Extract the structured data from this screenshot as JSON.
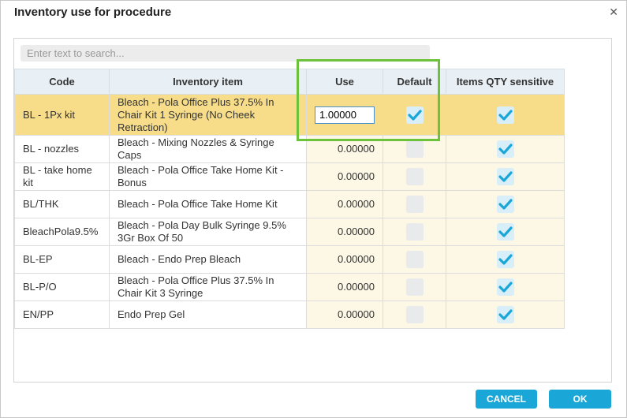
{
  "dialog": {
    "title": "Inventory use for procedure",
    "close_glyph": "✕"
  },
  "search": {
    "placeholder": "Enter text to search...",
    "value": ""
  },
  "columns": [
    "Code",
    "Inventory item",
    "Use",
    "Default",
    "Items QTY sensitive"
  ],
  "rows": [
    {
      "code": "BL - 1Px kit",
      "item": "Bleach - Pola Office Plus 37.5% In Chair Kit 1 Syringe (No Cheek Retraction)",
      "use": "1.00000",
      "default": true,
      "qty_sensitive": true,
      "selected": true
    },
    {
      "code": "BL - nozzles",
      "item": "Bleach - Mixing Nozzles & Syringe Caps",
      "use": "0.00000",
      "default": false,
      "qty_sensitive": true,
      "selected": false
    },
    {
      "code": "BL - take home kit",
      "item": "Bleach - Pola Office Take Home Kit - Bonus",
      "use": "0.00000",
      "default": false,
      "qty_sensitive": true,
      "selected": false
    },
    {
      "code": "BL/THK",
      "item": "Bleach - Pola Office Take Home Kit",
      "use": "0.00000",
      "default": false,
      "qty_sensitive": true,
      "selected": false
    },
    {
      "code": "BleachPola9.5%",
      "item": "Bleach - Pola Day Bulk Syringe 9.5% 3Gr Box Of 50",
      "use": "0.00000",
      "default": false,
      "qty_sensitive": true,
      "selected": false
    },
    {
      "code": "BL-EP",
      "item": "Bleach - Endo Prep Bleach",
      "use": "0.00000",
      "default": false,
      "qty_sensitive": true,
      "selected": false
    },
    {
      "code": "BL-P/O",
      "item": "Bleach - Pola Office Plus 37.5% In Chair Kit 3 Syringe",
      "use": "0.00000",
      "default": false,
      "qty_sensitive": true,
      "selected": false
    },
    {
      "code": "EN/PP",
      "item": "Endo Prep Gel",
      "use": "0.00000",
      "default": false,
      "qty_sensitive": true,
      "selected": false
    }
  ],
  "buttons": {
    "cancel": "CANCEL",
    "ok": "OK"
  },
  "colors": {
    "accent": "#1aa7d8",
    "selected_row": "#f7dd8a",
    "highlight_box": "#6cc23a",
    "check": "#1aa7d8"
  }
}
